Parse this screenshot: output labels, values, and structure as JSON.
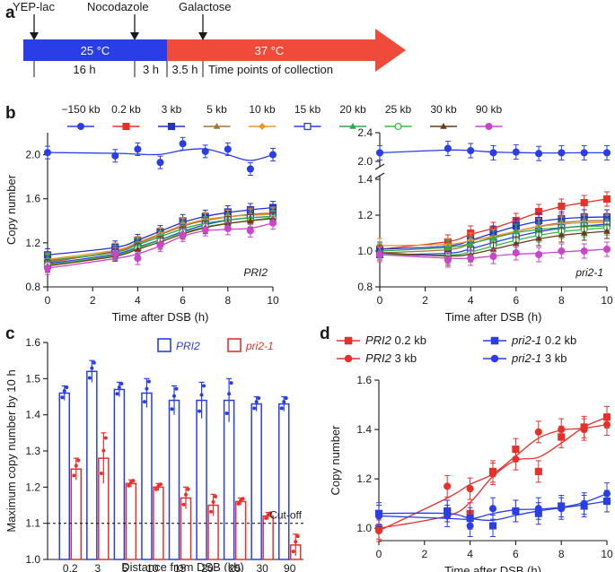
{
  "panel_labels": [
    "a",
    "b",
    "c",
    "d"
  ],
  "timeline": {
    "events": [
      "YEP-lac",
      "Nocodazole",
      "Galactose"
    ],
    "phase1_label": "25 °C",
    "phase2_label": "37 °C",
    "durations": [
      "16 h",
      "3 h",
      "3.5 h",
      "Time points of collection"
    ],
    "colors": {
      "blue": "#2a3ee8",
      "red": "#f04a3a"
    }
  },
  "chart_data": [
    {
      "id": "b_left",
      "type": "line",
      "gene_label": "PRI2",
      "xlabel": "Time after DSB (h)",
      "ylabel": "Copy number",
      "xlim": [
        0,
        10
      ],
      "ylim": [
        0.8,
        2.2
      ],
      "xticks": [
        "0",
        "2",
        "4",
        "6",
        "8",
        "10"
      ],
      "yticks": [
        "0.8",
        "1.2",
        "1.6",
        "2.0"
      ],
      "x": [
        0,
        3,
        4,
        5,
        6,
        7,
        8,
        9,
        10
      ],
      "series": [
        {
          "name": "−150 kb",
          "color": "#2a3ee8",
          "marker": "circle",
          "values": [
            2.02,
            1.99,
            2.05,
            1.93,
            2.1,
            2.03,
            2.05,
            1.87,
            2.0
          ]
        },
        {
          "name": "0.2 kb",
          "color": "#e8302a",
          "marker": "square",
          "values": [
            1.02,
            1.14,
            1.2,
            1.27,
            1.37,
            1.4,
            1.44,
            1.46,
            1.47
          ]
        },
        {
          "name": "3 kb",
          "color": "#2233cc",
          "marker": "square",
          "values": [
            1.09,
            1.16,
            1.22,
            1.3,
            1.4,
            1.44,
            1.48,
            1.5,
            1.52
          ]
        },
        {
          "name": "5 kb",
          "color": "#a0763a",
          "marker": "triangle",
          "values": [
            1.03,
            1.12,
            1.19,
            1.27,
            1.36,
            1.41,
            1.44,
            1.46,
            1.47
          ]
        },
        {
          "name": "10 kb",
          "color": "#f0932a",
          "marker": "diamond",
          "values": [
            1.05,
            1.14,
            1.2,
            1.28,
            1.37,
            1.42,
            1.44,
            1.45,
            1.46
          ]
        },
        {
          "name": "15 kb",
          "color": "#2a3ee8",
          "marker": "open-square",
          "values": [
            1.01,
            1.11,
            1.16,
            1.22,
            1.31,
            1.37,
            1.41,
            1.43,
            1.44
          ]
        },
        {
          "name": "20 kb",
          "color": "#2aa84a",
          "marker": "triangle",
          "values": [
            1.04,
            1.12,
            1.18,
            1.25,
            1.34,
            1.38,
            1.41,
            1.43,
            1.44
          ]
        },
        {
          "name": "25 kb",
          "color": "#33bb44",
          "marker": "open-circle",
          "values": [
            1.0,
            1.1,
            1.15,
            1.22,
            1.3,
            1.35,
            1.38,
            1.4,
            1.43
          ]
        },
        {
          "name": "30 kb",
          "color": "#6b3a1a",
          "marker": "triangle",
          "values": [
            0.99,
            1.09,
            1.14,
            1.2,
            1.29,
            1.34,
            1.38,
            1.4,
            1.42
          ]
        },
        {
          "name": "90 kb",
          "color": "#cc44cc",
          "marker": "circle",
          "values": [
            0.97,
            1.1,
            1.06,
            1.18,
            1.27,
            1.32,
            1.33,
            1.31,
            1.38
          ]
        }
      ]
    },
    {
      "id": "b_right",
      "type": "line",
      "gene_label": "pri2-1",
      "xlabel": "Time after DSB (h)",
      "ylabel": "",
      "xlim": [
        0,
        10
      ],
      "ylim": [
        0.8,
        2.4
      ],
      "axis_break": [
        1.4,
        2.0
      ],
      "xticks": [
        "0",
        "2",
        "4",
        "6",
        "8",
        "10"
      ],
      "yticks": [
        "0.8",
        "1.0",
        "1.2",
        "1.4",
        "2.0",
        "2.4"
      ],
      "x": [
        0,
        3,
        4,
        5,
        6,
        7,
        8,
        9,
        10
      ],
      "series": [
        {
          "name": "−150 kb",
          "color": "#2a3ee8",
          "marker": "circle",
          "values": [
            2.12,
            2.18,
            2.15,
            2.12,
            2.13,
            2.11,
            2.12,
            2.12,
            2.12
          ]
        },
        {
          "name": "0.2 kb",
          "color": "#e8302a",
          "marker": "square",
          "values": [
            1.01,
            1.05,
            1.1,
            1.12,
            1.17,
            1.22,
            1.25,
            1.27,
            1.29
          ]
        },
        {
          "name": "3 kb",
          "color": "#2233cc",
          "marker": "square",
          "values": [
            1.01,
            1.02,
            1.06,
            1.1,
            1.14,
            1.17,
            1.18,
            1.19,
            1.19
          ]
        },
        {
          "name": "5 kb",
          "color": "#a0763a",
          "marker": "triangle",
          "values": [
            0.99,
            1.0,
            1.04,
            1.08,
            1.11,
            1.14,
            1.16,
            1.17,
            1.17
          ]
        },
        {
          "name": "10 kb",
          "color": "#f0932a",
          "marker": "diamond",
          "values": [
            1.03,
            1.03,
            1.06,
            1.08,
            1.11,
            1.14,
            1.15,
            1.16,
            1.16
          ]
        },
        {
          "name": "15 kb",
          "color": "#2a3ee8",
          "marker": "open-square",
          "values": [
            0.98,
            0.98,
            1.01,
            1.05,
            1.08,
            1.11,
            1.13,
            1.14,
            1.15
          ]
        },
        {
          "name": "20 kb",
          "color": "#2aa84a",
          "marker": "triangle",
          "values": [
            1.0,
            1.02,
            1.04,
            1.07,
            1.11,
            1.12,
            1.13,
            1.14,
            1.14
          ]
        },
        {
          "name": "25 kb",
          "color": "#33bb44",
          "marker": "open-circle",
          "values": [
            0.98,
            0.97,
            0.99,
            1.03,
            1.06,
            1.09,
            1.11,
            1.12,
            1.13
          ]
        },
        {
          "name": "30 kb",
          "color": "#6b3a1a",
          "marker": "triangle",
          "values": [
            0.99,
            0.96,
            0.98,
            1.01,
            1.04,
            1.07,
            1.09,
            1.1,
            1.11
          ]
        },
        {
          "name": "90 kb",
          "color": "#cc44cc",
          "marker": "circle",
          "values": [
            0.98,
            0.95,
            0.96,
            0.97,
            0.99,
            0.98,
            1.0,
            1.0,
            1.01
          ]
        }
      ]
    },
    {
      "id": "c",
      "type": "bar",
      "ylabel": "Maximum copy number by 10 h",
      "xlabel": "Distance from DSB (kb)",
      "ylim": [
        1.0,
        1.6
      ],
      "yticks": [
        "1.0",
        "1.1",
        "1.2",
        "1.3",
        "1.4",
        "1.5",
        "1.6"
      ],
      "categories": [
        "0.2",
        "3",
        "5",
        "10",
        "15",
        "20",
        "25",
        "30",
        "90"
      ],
      "cutoff": 1.1,
      "cutoff_label": "Cut-off",
      "series": [
        {
          "name": "PRI2",
          "color": "#2a3ee8",
          "values": [
            1.46,
            1.52,
            1.47,
            1.46,
            1.44,
            1.44,
            1.44,
            1.43,
            1.43
          ],
          "errors": [
            0.02,
            0.03,
            0.02,
            0.04,
            0.04,
            0.05,
            0.06,
            0.02,
            0.02
          ]
        },
        {
          "name": "pri2-1",
          "color": "#e8302a",
          "values": [
            1.25,
            1.28,
            1.21,
            1.2,
            1.17,
            1.15,
            1.16,
            1.12,
            1.04
          ],
          "errors": [
            0.03,
            0.07,
            0.01,
            0.01,
            0.03,
            0.03,
            0.01,
            0.01,
            0.03
          ]
        }
      ]
    },
    {
      "id": "d",
      "type": "line",
      "xlabel": "Time after DSB (h)",
      "ylabel": "Copy number",
      "xlim": [
        0,
        10
      ],
      "ylim": [
        1.0,
        1.6
      ],
      "xticks": [
        "0",
        "2",
        "4",
        "6",
        "8",
        "10"
      ],
      "yticks": [
        "1.0",
        "1.2",
        "1.4",
        "1.6"
      ],
      "x": [
        0,
        3,
        4,
        5,
        6,
        7,
        8,
        9,
        10
      ],
      "series": [
        {
          "name": "PRI2 0.2 kb",
          "gene": "PRI2",
          "suffix": " 0.2 kb",
          "color": "#e8302a",
          "marker": "square",
          "values": [
            1.0,
            1.07,
            1.06,
            1.23,
            1.32,
            1.23,
            1.37,
            1.41,
            1.45
          ]
        },
        {
          "name": "PRI2 3 kb",
          "gene": "PRI2",
          "suffix": " 3 kb",
          "color": "#e8302a",
          "marker": "circle",
          "values": [
            0.99,
            1.17,
            1.16,
            1.22,
            1.28,
            1.39,
            1.4,
            1.4,
            1.42
          ]
        },
        {
          "name": "pri2-1 0.2 kb",
          "gene": "pri2-1",
          "suffix": " 0.2 kb",
          "color": "#2a3ee8",
          "marker": "square",
          "values": [
            1.06,
            1.07,
            1.04,
            1.01,
            1.07,
            1.06,
            1.09,
            1.09,
            1.11
          ]
        },
        {
          "name": "pri2-1 3 kb",
          "gene": "pri2-1",
          "suffix": " 3 kb",
          "color": "#2a3ee8",
          "marker": "circle",
          "values": [
            1.05,
            1.05,
            1.01,
            1.08,
            1.07,
            1.08,
            1.08,
            1.1,
            1.14
          ]
        }
      ]
    }
  ]
}
